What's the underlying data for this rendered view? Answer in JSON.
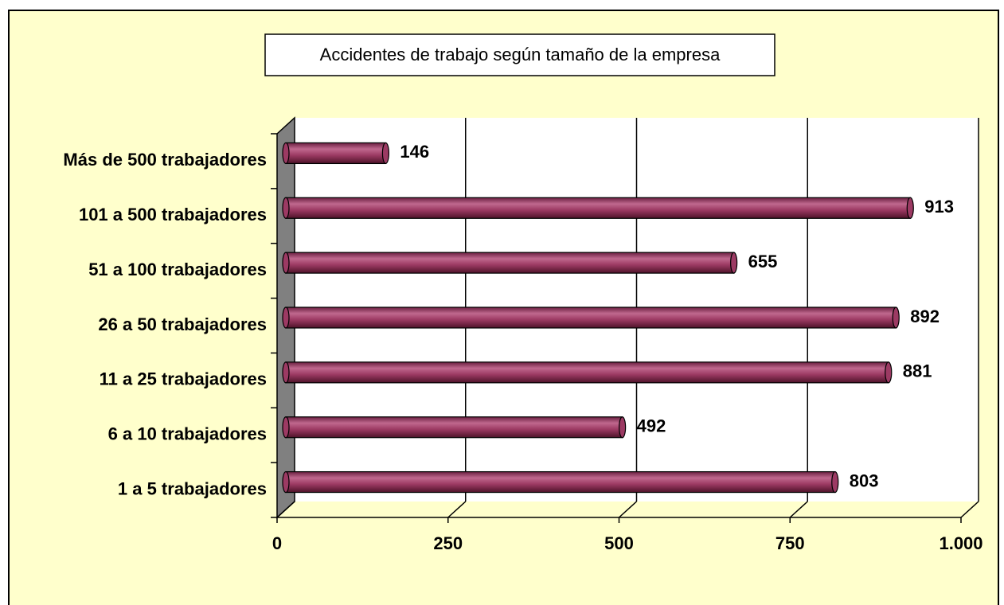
{
  "chart_data": {
    "type": "bar",
    "orientation": "horizontal",
    "title": "Accidentes de trabajo según tamaño de la empresa",
    "categories": [
      "1 a 5 trabajadores",
      "6 a 10 trabajadores",
      "11 a 25 trabajadores",
      "26 a 50 trabajadores",
      "51 a 100 trabajadores",
      "101 a 500 trabajadores",
      "Más de 500 trabajadores"
    ],
    "values": [
      803,
      492,
      881,
      892,
      655,
      913,
      146
    ],
    "color": "#9c3a63",
    "xlim": [
      0,
      1000
    ],
    "xticks": [
      0,
      250,
      500,
      750,
      {
        "value": 1000,
        "label": "1.000"
      }
    ],
    "grid": true
  }
}
